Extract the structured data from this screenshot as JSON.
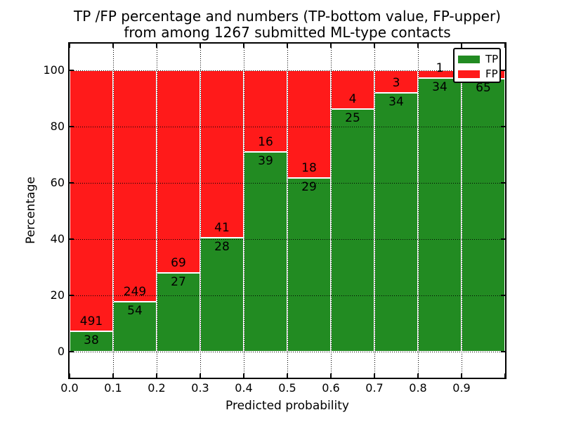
{
  "chart_data": {
    "type": "bar",
    "stacked": true,
    "normalized_to_percent": true,
    "title_line1": "TP /FP percentage and numbers (TP-bottom value, FP-upper)",
    "title_line2": "from among 1267 submitted ML-type contacts",
    "xlabel": "Predicted probability",
    "ylabel": "Percentage",
    "x_tick_labels": [
      "0.0",
      "0.1",
      "0.2",
      "0.3",
      "0.4",
      "0.5",
      "0.6",
      "0.7",
      "0.8",
      "0.9"
    ],
    "y_tick_values": [
      0,
      20,
      40,
      60,
      80,
      100
    ],
    "bin_edges": [
      0.0,
      0.1,
      0.2,
      0.3,
      0.4,
      0.5,
      0.6,
      0.7,
      0.8,
      0.9,
      1.0
    ],
    "xlim": [
      0.0,
      1.0
    ],
    "ylim": [
      -9.25,
      109.5
    ],
    "grid_style": "dotted",
    "bar_edge_color": "#ffffff",
    "total_contacts": 1267,
    "series": [
      {
        "name": "TP",
        "color": "#228b22",
        "values": [
          38,
          54,
          27,
          28,
          39,
          29,
          25,
          34,
          34,
          65
        ]
      },
      {
        "name": "FP",
        "color": "#ff1a1a",
        "values": [
          491,
          249,
          69,
          41,
          16,
          18,
          4,
          3,
          1,
          2
        ]
      }
    ],
    "tp_percent_by_bin": [
      7.2,
      17.8,
      28.1,
      40.6,
      70.9,
      61.7,
      86.2,
      91.9,
      97.1,
      97.0
    ],
    "legend": {
      "position": "upper right",
      "entries": [
        "TP",
        "FP"
      ]
    }
  }
}
